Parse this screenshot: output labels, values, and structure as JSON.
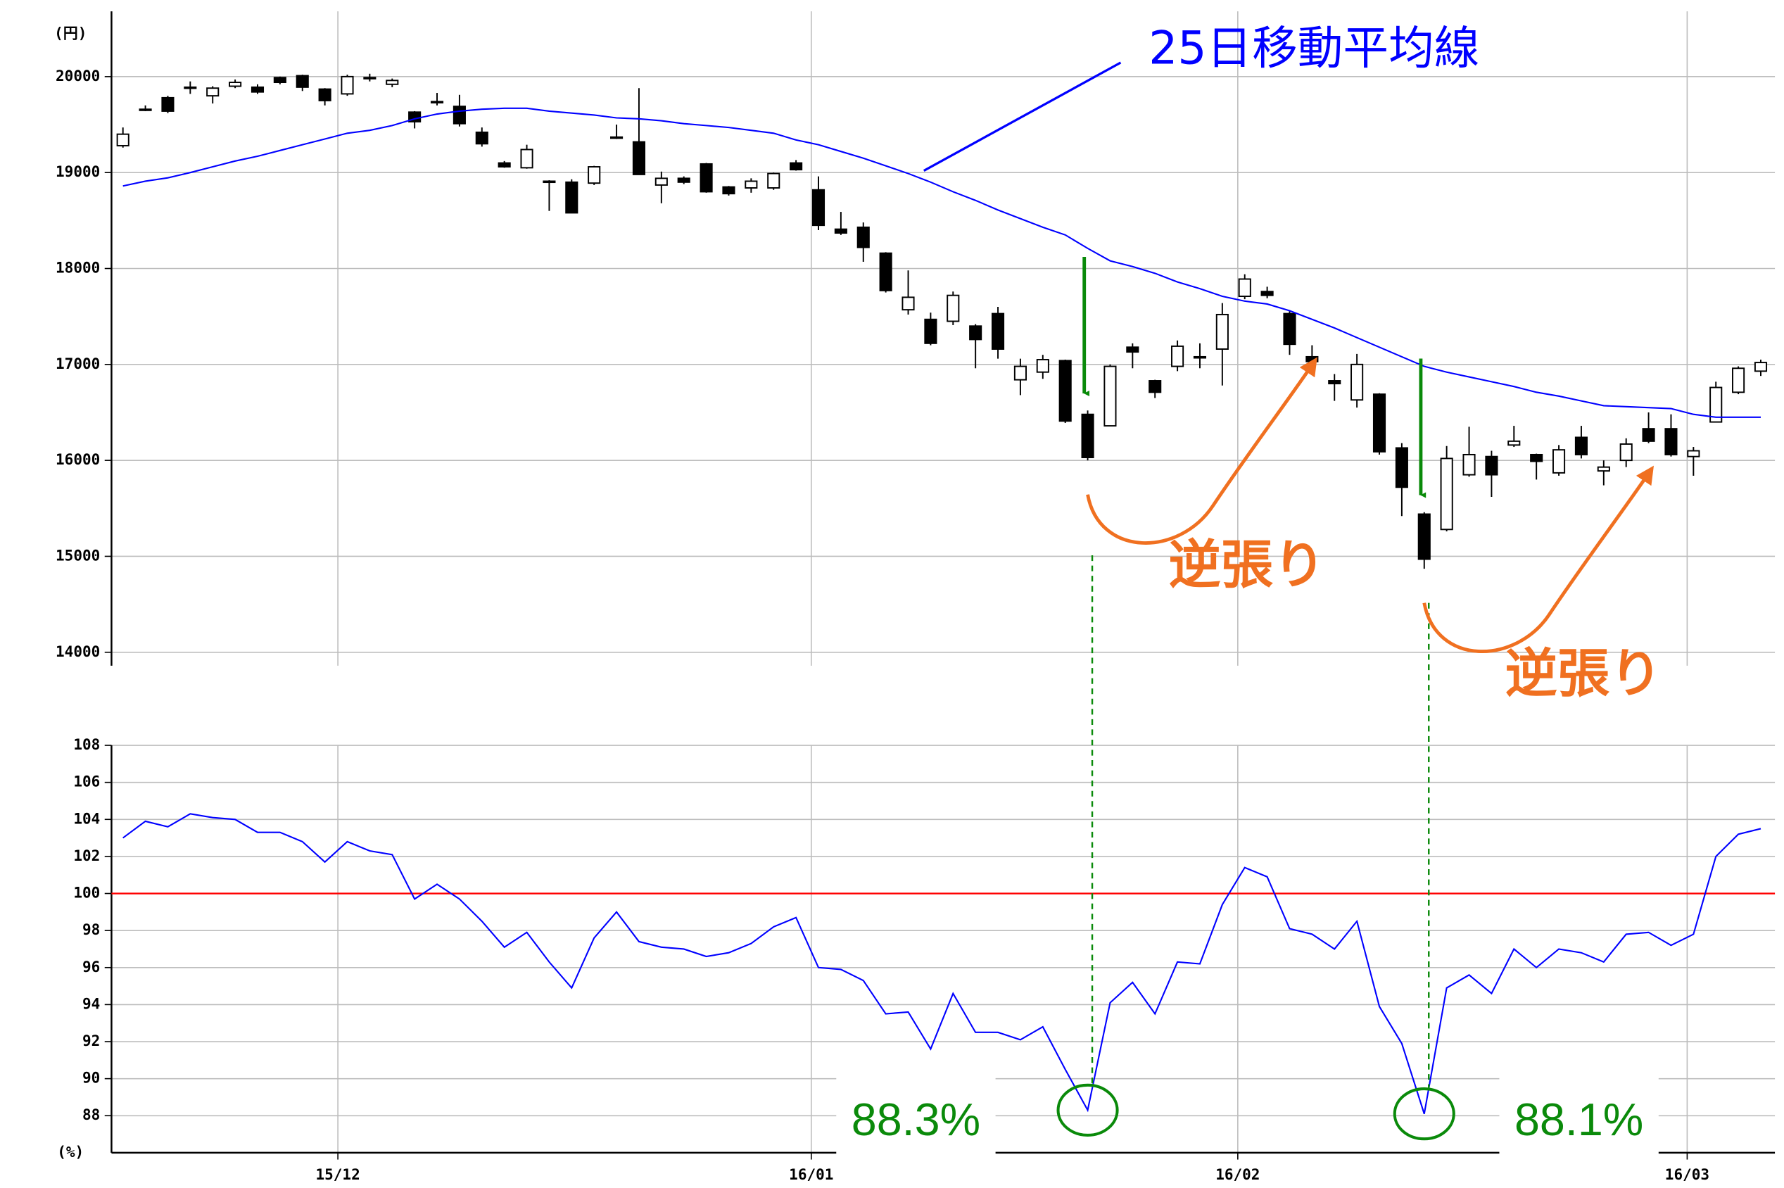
{
  "chart_data": [
    {
      "type": "candlestick",
      "y_label": "(円)",
      "xlim": [
        -0.51,
        73.63
      ],
      "xticks": [
        9.58,
        30.68,
        49.69,
        69.72
      ],
      "ylim": [
        13860,
        20680
      ],
      "yticks": [
        14000,
        15000,
        16000,
        17000,
        18000,
        19000,
        20000
      ],
      "grid": true,
      "up_color": "#ffffff",
      "down_color": "#000000",
      "open": [
        19280,
        19650,
        19780,
        19880,
        19800,
        19900,
        19890,
        19990,
        20010,
        19870,
        19820,
        19990,
        19920,
        19630,
        19740,
        19690,
        19420,
        19100,
        19050,
        18910,
        18900,
        18890,
        19370,
        19320,
        18870,
        18940,
        19090,
        18850,
        18840,
        18840,
        19100,
        18820,
        18410,
        18430,
        18160,
        17570,
        17470,
        17450,
        17400,
        17530,
        16840,
        16920,
        17040,
        16480,
        16360,
        17180,
        16830,
        16980,
        17080,
        17160,
        17710,
        17760,
        17530,
        17080,
        16830,
        16630,
        16690,
        16130,
        15440,
        15280,
        15850,
        16040,
        16160,
        16060,
        15870,
        16240,
        15890,
        16000,
        16330,
        16330,
        16040,
        16400,
        16710,
        16930
      ],
      "high": [
        19470,
        19700,
        19800,
        19950,
        19900,
        19970,
        19920,
        20000,
        20020,
        19880,
        20020,
        20030,
        19980,
        19640,
        19830,
        19810,
        19470,
        19120,
        19290,
        18920,
        18930,
        19070,
        19500,
        19880,
        19010,
        18960,
        19100,
        18860,
        18940,
        19000,
        19130,
        18960,
        18590,
        18480,
        18170,
        17980,
        17540,
        17760,
        17420,
        17600,
        17060,
        17100,
        17050,
        16520,
        17000,
        17220,
        16840,
        17250,
        17220,
        17640,
        17940,
        17810,
        17560,
        17200,
        16900,
        17110,
        16700,
        16180,
        15460,
        16150,
        16350,
        16100,
        16360,
        16070,
        16160,
        16360,
        16000,
        16230,
        16500,
        16480,
        16140,
        16820,
        16980,
        17050
      ],
      "low": [
        19260,
        19640,
        19620,
        19820,
        19720,
        19880,
        19820,
        19920,
        19850,
        19700,
        19800,
        19950,
        19890,
        19460,
        19700,
        19480,
        19270,
        19050,
        19040,
        18600,
        18580,
        18870,
        19350,
        18980,
        18680,
        18880,
        18790,
        18760,
        18790,
        18820,
        19020,
        18400,
        18350,
        18070,
        17750,
        17520,
        17200,
        17410,
        16960,
        17060,
        16680,
        16850,
        16390,
        16000,
        16360,
        16960,
        16650,
        16930,
        16960,
        16780,
        17680,
        17690,
        17100,
        16900,
        16620,
        16550,
        16060,
        15420,
        14870,
        15260,
        15830,
        15620,
        16140,
        15800,
        15840,
        16020,
        15740,
        15930,
        16180,
        16040,
        15840,
        16400,
        16690,
        16880
      ],
      "close": [
        19400,
        19660,
        19640,
        19890,
        19880,
        19940,
        19840,
        19940,
        19890,
        19750,
        20000,
        19990,
        19960,
        19530,
        19740,
        19510,
        19300,
        19060,
        19240,
        18910,
        18580,
        19060,
        19370,
        18980,
        18940,
        18900,
        18800,
        18780,
        18910,
        18990,
        19030,
        18450,
        18370,
        18220,
        17770,
        17700,
        17220,
        17720,
        17260,
        17160,
        16980,
        17050,
        16410,
        16030,
        16980,
        17130,
        16710,
        17190,
        17080,
        17520,
        17890,
        17720,
        17210,
        17030,
        16800,
        17000,
        16090,
        15720,
        14970,
        16020,
        16060,
        15850,
        16200,
        15990,
        16110,
        16060,
        15930,
        16170,
        16200,
        16060,
        16100,
        16760,
        16960,
        17020
      ],
      "series": [
        {
          "name": "25日移動平均線",
          "color": "#0000ff",
          "values": [
            18860,
            18910,
            18945,
            19000,
            19060,
            19120,
            19170,
            19230,
            19290,
            19350,
            19410,
            19440,
            19490,
            19560,
            19610,
            19640,
            19660,
            19670,
            19670,
            19640,
            19620,
            19600,
            19570,
            19560,
            19540,
            19510,
            19490,
            19470,
            19440,
            19410,
            19340,
            19290,
            19220,
            19150,
            19070,
            18990,
            18900,
            18800,
            18710,
            18610,
            18520,
            18430,
            18350,
            18210,
            18080,
            18020,
            17950,
            17860,
            17790,
            17710,
            17660,
            17630,
            17560,
            17470,
            17380,
            17280,
            17180,
            17080,
            16980,
            16920,
            16870,
            16820,
            16770,
            16710,
            16670,
            16620,
            16570,
            16560,
            16550,
            16540,
            16480,
            16450,
            16450,
            16450
          ]
        }
      ]
    },
    {
      "type": "line",
      "y_label": "(%)",
      "xlim": [
        -0.51,
        73.63
      ],
      "xticks": [
        {
          "value": 9.58,
          "label": "15/12"
        },
        {
          "value": 30.68,
          "label": "16/01"
        },
        {
          "value": 49.69,
          "label": "16/02"
        },
        {
          "value": 69.72,
          "label": "16/03"
        }
      ],
      "ylim": [
        86,
        108
      ],
      "yticks": [
        88,
        90,
        92,
        94,
        96,
        98,
        100,
        102,
        104,
        106,
        108
      ],
      "grid": true,
      "hline": {
        "value": 100,
        "color": "#ff0000"
      },
      "series": [
        {
          "color": "#0000ff",
          "values": [
            103.0,
            103.9,
            103.6,
            104.3,
            104.1,
            104.0,
            103.3,
            103.3,
            102.8,
            101.7,
            102.8,
            102.3,
            102.1,
            99.7,
            100.5,
            99.7,
            98.5,
            97.1,
            97.9,
            96.3,
            94.9,
            97.6,
            99.0,
            97.4,
            97.1,
            97.0,
            96.6,
            96.8,
            97.3,
            98.2,
            98.7,
            96.0,
            95.9,
            95.3,
            93.5,
            93.6,
            91.6,
            94.6,
            92.5,
            92.5,
            92.1,
            92.8,
            90.5,
            88.3,
            94.1,
            95.2,
            93.5,
            96.3,
            96.2,
            99.4,
            101.4,
            100.9,
            98.1,
            97.8,
            97.0,
            98.5,
            93.9,
            91.9,
            88.1,
            94.9,
            95.6,
            94.6,
            97.0,
            96.0,
            97.0,
            96.8,
            96.3,
            97.8,
            97.9,
            97.2,
            97.8,
            102.0,
            103.2,
            103.5
          ],
          "value_labels": [
            null,
            null,
            null,
            null,
            null,
            null,
            null,
            null,
            null,
            null,
            null,
            null,
            null,
            null,
            null,
            null,
            null,
            null,
            null,
            null,
            null,
            null,
            null,
            null,
            null,
            null,
            null,
            null,
            null,
            null,
            null,
            null,
            null,
            null,
            null,
            null,
            null,
            null,
            null,
            null,
            null,
            null,
            null,
            "88.3%",
            null,
            null,
            null,
            null,
            null,
            null,
            null,
            null,
            null,
            null,
            null,
            null,
            null,
            null,
            "88.1%",
            null,
            null,
            null,
            null,
            null,
            null,
            null,
            null,
            null,
            null,
            null,
            null,
            null,
            null,
            null
          ]
        }
      ],
      "annotations": [
        "逆張り",
        "逆張り"
      ]
    }
  ]
}
